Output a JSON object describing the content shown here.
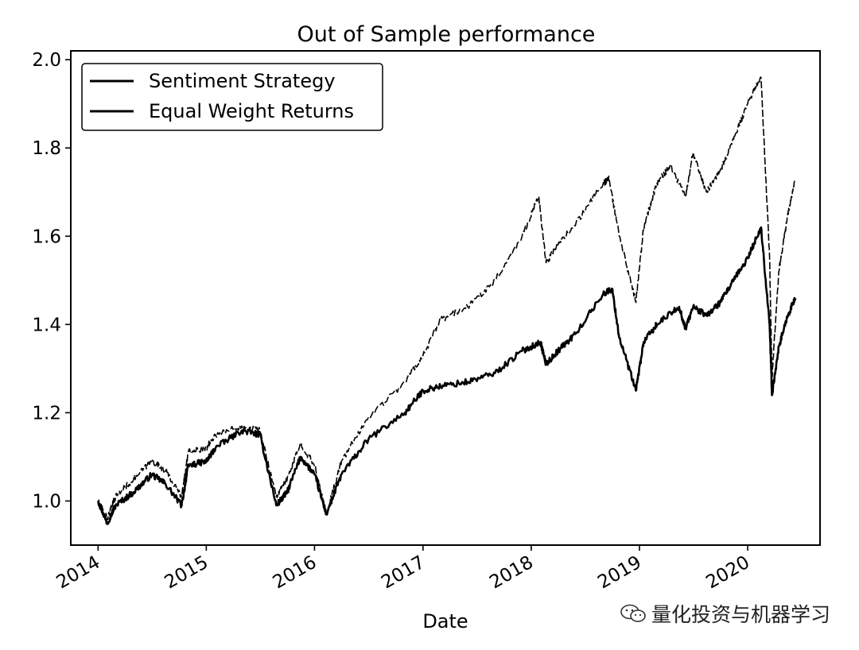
{
  "chart_data": {
    "type": "line",
    "title": "Out of Sample performance",
    "xlabel": "Date",
    "ylabel": "",
    "xlim": [
      "2013-10-01",
      "2020-09-01"
    ],
    "ylim": [
      0.9,
      2.02
    ],
    "x_ticks": [
      "2014",
      "2015",
      "2016",
      "2017",
      "2018",
      "2019",
      "2020"
    ],
    "y_ticks": [
      "1.0",
      "1.2",
      "1.4",
      "1.6",
      "1.8",
      "2.0"
    ],
    "grid": false,
    "legend_position": "upper-left",
    "series": [
      {
        "name": "Sentiment Strategy",
        "color": "#000000",
        "style": "solid",
        "points": [
          [
            "2014-01-01",
            1.0
          ],
          [
            "2014-02-01",
            0.95
          ],
          [
            "2014-03-01",
            0.99
          ],
          [
            "2014-05-01",
            1.02
          ],
          [
            "2014-07-01",
            1.06
          ],
          [
            "2014-08-15",
            1.04
          ],
          [
            "2014-10-10",
            0.99
          ],
          [
            "2014-11-01",
            1.08
          ],
          [
            "2015-01-01",
            1.09
          ],
          [
            "2015-02-01",
            1.12
          ],
          [
            "2015-05-01",
            1.16
          ],
          [
            "2015-07-01",
            1.15
          ],
          [
            "2015-08-25",
            0.99
          ],
          [
            "2015-10-01",
            1.02
          ],
          [
            "2015-11-15",
            1.1
          ],
          [
            "2016-01-01",
            1.06
          ],
          [
            "2016-02-10",
            0.97
          ],
          [
            "2016-04-01",
            1.06
          ],
          [
            "2016-07-01",
            1.14
          ],
          [
            "2016-11-01",
            1.2
          ],
          [
            "2017-01-01",
            1.25
          ],
          [
            "2017-03-01",
            1.26
          ],
          [
            "2017-06-01",
            1.27
          ],
          [
            "2017-09-01",
            1.29
          ],
          [
            "2017-12-01",
            1.34
          ],
          [
            "2018-02-01",
            1.36
          ],
          [
            "2018-02-20",
            1.31
          ],
          [
            "2018-04-01",
            1.34
          ],
          [
            "2018-06-01",
            1.38
          ],
          [
            "2018-09-01",
            1.47
          ],
          [
            "2018-10-01",
            1.48
          ],
          [
            "2018-10-25",
            1.37
          ],
          [
            "2018-12-20",
            1.25
          ],
          [
            "2019-01-15",
            1.36
          ],
          [
            "2019-03-01",
            1.4
          ],
          [
            "2019-05-15",
            1.44
          ],
          [
            "2019-06-05",
            1.39
          ],
          [
            "2019-07-01",
            1.44
          ],
          [
            "2019-08-15",
            1.42
          ],
          [
            "2019-10-01",
            1.45
          ],
          [
            "2019-11-15",
            1.5
          ],
          [
            "2020-01-01",
            1.55
          ],
          [
            "2020-02-15",
            1.62
          ],
          [
            "2020-03-15",
            1.4
          ],
          [
            "2020-03-23",
            1.24
          ],
          [
            "2020-04-15",
            1.35
          ],
          [
            "2020-05-15",
            1.42
          ],
          [
            "2020-06-10",
            1.46
          ]
        ]
      },
      {
        "name": "Equal Weight Returns",
        "color": "#000000",
        "style": "dashed",
        "points": [
          [
            "2014-01-01",
            1.0
          ],
          [
            "2014-02-01",
            0.96
          ],
          [
            "2014-03-01",
            1.01
          ],
          [
            "2014-05-01",
            1.05
          ],
          [
            "2014-07-01",
            1.09
          ],
          [
            "2014-08-15",
            1.07
          ],
          [
            "2014-10-10",
            1.01
          ],
          [
            "2014-11-01",
            1.11
          ],
          [
            "2015-01-01",
            1.12
          ],
          [
            "2015-02-01",
            1.15
          ],
          [
            "2015-05-01",
            1.17
          ],
          [
            "2015-07-01",
            1.16
          ],
          [
            "2015-08-25",
            1.01
          ],
          [
            "2015-10-01",
            1.05
          ],
          [
            "2015-11-15",
            1.13
          ],
          [
            "2016-01-01",
            1.08
          ],
          [
            "2016-02-10",
            0.97
          ],
          [
            "2016-04-01",
            1.09
          ],
          [
            "2016-07-01",
            1.19
          ],
          [
            "2016-11-01",
            1.27
          ],
          [
            "2017-01-01",
            1.33
          ],
          [
            "2017-03-01",
            1.41
          ],
          [
            "2017-06-01",
            1.44
          ],
          [
            "2017-09-01",
            1.5
          ],
          [
            "2017-12-01",
            1.6
          ],
          [
            "2018-01-26",
            1.69
          ],
          [
            "2018-02-20",
            1.54
          ],
          [
            "2018-04-01",
            1.58
          ],
          [
            "2018-06-01",
            1.63
          ],
          [
            "2018-09-01",
            1.72
          ],
          [
            "2018-09-20",
            1.73
          ],
          [
            "2018-10-25",
            1.6
          ],
          [
            "2018-12-20",
            1.45
          ],
          [
            "2019-01-15",
            1.62
          ],
          [
            "2019-03-01",
            1.72
          ],
          [
            "2019-04-15",
            1.76
          ],
          [
            "2019-06-05",
            1.69
          ],
          [
            "2019-07-01",
            1.79
          ],
          [
            "2019-08-15",
            1.7
          ],
          [
            "2019-10-01",
            1.75
          ],
          [
            "2019-11-15",
            1.82
          ],
          [
            "2020-01-01",
            1.9
          ],
          [
            "2020-02-15",
            1.96
          ],
          [
            "2020-03-15",
            1.55
          ],
          [
            "2020-03-23",
            1.28
          ],
          [
            "2020-04-15",
            1.52
          ],
          [
            "2020-05-15",
            1.65
          ],
          [
            "2020-06-10",
            1.73
          ]
        ]
      }
    ]
  },
  "watermark": {
    "icon": "wechat-icon",
    "text": "量化投资与机器学习"
  }
}
